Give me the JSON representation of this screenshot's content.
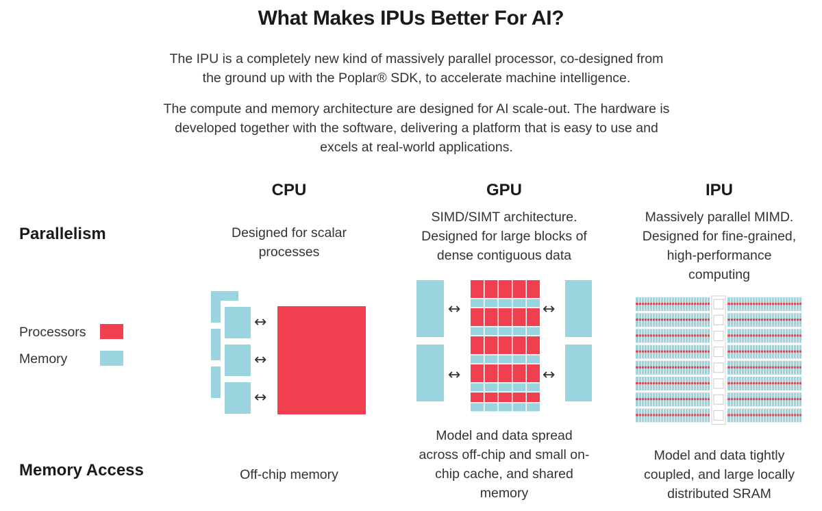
{
  "title": "What Makes IPUs Better For AI?",
  "intro": {
    "p1_line1": "The IPU is a completely new kind of massively parallel processor, co-designed from",
    "p1_line2": "the ground up with the Poplar® SDK, to accelerate machine intelligence.",
    "p2_line1": "The compute and memory architecture are designed for AI scale-out. The hardware is",
    "p2_line2": "developed together with the software, delivering a platform that is easy to use and",
    "p2_line3": "excels at real-world applications."
  },
  "rows": {
    "parallelism": "Parallelism",
    "memory_access": "Memory Access"
  },
  "legend": {
    "processors": "Processors",
    "memory": "Memory",
    "processor_color": "#f0404f",
    "memory_color": "#99d4df"
  },
  "columns": {
    "cpu": {
      "heading": "CPU",
      "parallelism": [
        "Designed for scalar",
        "processes"
      ],
      "memory_access": [
        "Off-chip memory"
      ]
    },
    "gpu": {
      "heading": "GPU",
      "parallelism": [
        "SIMD/SIMT architecture.",
        "Designed for large blocks of",
        "dense contiguous data"
      ],
      "memory_access": [
        "Model and data spread",
        "across off-chip and small on-",
        "chip cache, and shared",
        "memory"
      ]
    },
    "ipu": {
      "heading": "IPU",
      "parallelism": [
        "Massively parallel MIMD.",
        "Designed for fine-grained,",
        "high-performance",
        "computing"
      ],
      "memory_access": [
        "Model and data tightly",
        "coupled, and large locally",
        "distributed SRAM"
      ]
    }
  },
  "arrow_glyph": "↔"
}
